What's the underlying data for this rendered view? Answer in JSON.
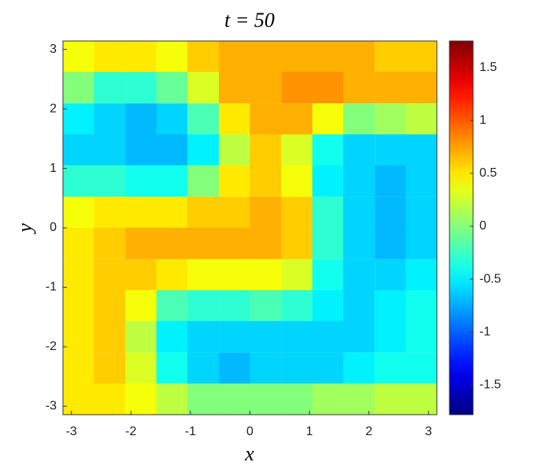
{
  "chart_data": {
    "type": "heatmap",
    "title": "t = 50",
    "x_label": "x",
    "y_label": "y",
    "colormap": "jet",
    "xlim": [
      -3.1416,
      3.1416
    ],
    "ylim": [
      -3.1416,
      3.1416
    ],
    "xticks": [
      -3,
      -2,
      -1,
      0,
      1,
      2,
      3
    ],
    "yticks": [
      -3,
      -2,
      -1,
      0,
      1,
      2,
      3
    ],
    "clim": [
      -1.78,
      1.75
    ],
    "cticks": [
      -1.5,
      -1,
      -0.5,
      0,
      0.5,
      1,
      1.5
    ],
    "x": [
      -2.88,
      -2.36,
      -1.83,
      -1.31,
      -0.79,
      -0.26,
      0.26,
      0.79,
      1.31,
      1.83,
      2.36,
      2.88
    ],
    "y": [
      2.88,
      2.36,
      1.83,
      1.31,
      0.79,
      0.26,
      -0.26,
      -0.79,
      -1.31,
      -1.83,
      -2.36,
      -2.88
    ],
    "z": [
      [
        0.4,
        0.5,
        0.5,
        0.4,
        0.6,
        0.7,
        0.7,
        0.7,
        0.7,
        0.7,
        0.6,
        0.6
      ],
      [
        0.0,
        -0.3,
        -0.3,
        -0.1,
        0.3,
        0.7,
        0.7,
        0.8,
        0.8,
        0.7,
        0.7,
        0.7
      ],
      [
        -0.5,
        -0.6,
        -0.7,
        -0.6,
        -0.2,
        0.5,
        0.7,
        0.7,
        0.4,
        0.0,
        0.1,
        0.2
      ],
      [
        -0.6,
        -0.6,
        -0.7,
        -0.7,
        -0.5,
        0.2,
        0.6,
        0.3,
        -0.4,
        -0.6,
        -0.6,
        -0.6
      ],
      [
        -0.3,
        -0.3,
        -0.4,
        -0.4,
        0.0,
        0.5,
        0.6,
        0.4,
        -0.5,
        -0.6,
        -0.7,
        -0.6
      ],
      [
        0.4,
        0.5,
        0.5,
        0.5,
        0.6,
        0.6,
        0.7,
        0.6,
        -0.3,
        -0.6,
        -0.7,
        -0.6
      ],
      [
        0.5,
        0.6,
        0.7,
        0.7,
        0.7,
        0.7,
        0.7,
        0.6,
        -0.3,
        -0.6,
        -0.7,
        -0.6
      ],
      [
        0.5,
        0.6,
        0.6,
        0.5,
        0.4,
        0.4,
        0.4,
        0.3,
        -0.4,
        -0.6,
        -0.6,
        -0.5
      ],
      [
        0.5,
        0.6,
        0.4,
        -0.2,
        -0.3,
        -0.3,
        -0.2,
        -0.3,
        -0.5,
        -0.6,
        -0.5,
        -0.4
      ],
      [
        0.5,
        0.6,
        0.2,
        -0.5,
        -0.6,
        -0.6,
        -0.6,
        -0.6,
        -0.6,
        -0.6,
        -0.5,
        -0.4
      ],
      [
        0.5,
        0.6,
        0.3,
        -0.4,
        -0.6,
        -0.7,
        -0.6,
        -0.6,
        -0.6,
        -0.5,
        -0.4,
        -0.4
      ],
      [
        0.5,
        0.5,
        0.4,
        0.2,
        0.0,
        0.0,
        0.0,
        0.0,
        0.1,
        0.1,
        0.2,
        0.2
      ]
    ]
  }
}
